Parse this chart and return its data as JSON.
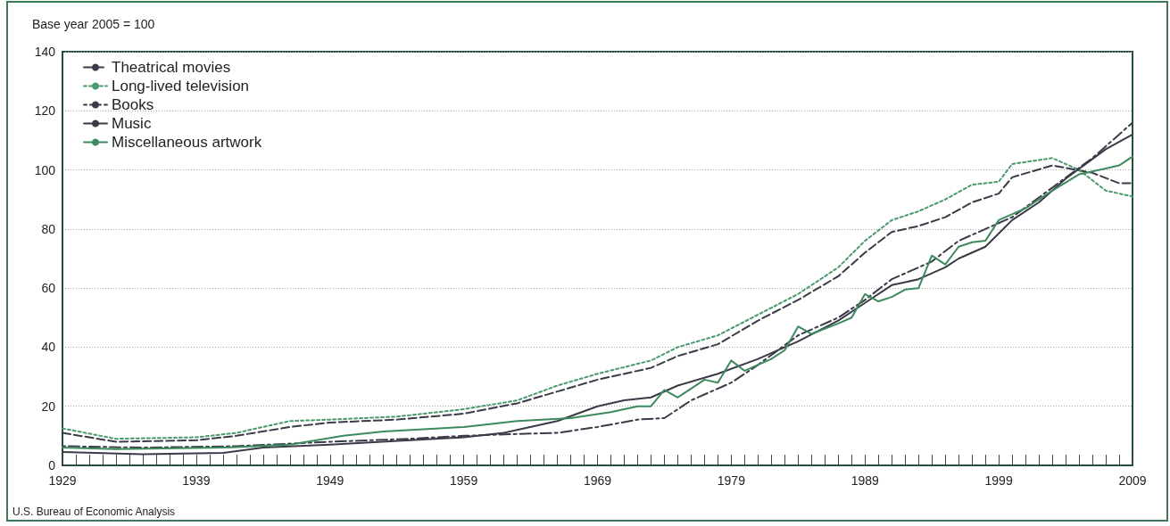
{
  "chart_data": {
    "type": "line",
    "ylabel": "Base year 2005 = 100",
    "annotations": [
      "U.S. Bureau of Economic Analysis"
    ],
    "xlim": [
      1929,
      2009
    ],
    "xticks": [
      1929,
      1939,
      1949,
      1959,
      1969,
      1979,
      1989,
      1999,
      2009
    ],
    "ylim": [
      0,
      140
    ],
    "yticks": [
      0,
      20,
      40,
      60,
      80,
      100,
      120,
      140
    ],
    "grid": "y",
    "legend": "top left",
    "series": [
      {
        "name": "Theatrical movies",
        "color": "#3a3a48",
        "line_style": "dashed",
        "x": [
          1929,
          1933,
          1939,
          1942,
          1946,
          1949,
          1954,
          1959,
          1963,
          1966,
          1969,
          1973,
          1975,
          1978,
          1981,
          1984,
          1987,
          1989,
          1991,
          1993,
          1995,
          1997,
          1999,
          2000,
          2003,
          2006,
          2008,
          2009
        ],
        "values": [
          11,
          8,
          8.5,
          10,
          13,
          14.5,
          15.5,
          17.5,
          21,
          25,
          29,
          33,
          37,
          41,
          49,
          56,
          64,
          72,
          79,
          81,
          84,
          89,
          92,
          97.5,
          101.5,
          99,
          95.5,
          95.5
        ]
      },
      {
        "name": "Long-lived television",
        "color": "#4a9a6e",
        "line_style": "dotted",
        "x": [
          1929,
          1933,
          1939,
          1942,
          1946,
          1949,
          1954,
          1959,
          1963,
          1966,
          1969,
          1973,
          1975,
          1978,
          1981,
          1984,
          1987,
          1989,
          1991,
          1993,
          1995,
          1997,
          1999,
          2000,
          2003,
          2005,
          2007,
          2009
        ],
        "values": [
          12.5,
          9,
          9.5,
          11,
          15,
          15.5,
          16.5,
          19,
          22,
          27,
          31,
          35.5,
          40,
          44,
          51,
          58,
          67,
          76,
          83,
          86,
          90,
          95,
          96,
          102,
          104,
          100,
          93,
          91
        ]
      },
      {
        "name": "Books",
        "color": "#3a3a48",
        "line_style": "dashdot",
        "x": [
          1929,
          1935,
          1942,
          1949,
          1955,
          1959,
          1962,
          1966,
          1969,
          1972,
          1974,
          1976,
          1979,
          1981,
          1984,
          1987,
          1989,
          1991,
          1994,
          1996,
          1998,
          2000,
          2003,
          2006,
          2009
        ],
        "values": [
          6.5,
          6,
          6.5,
          8,
          9,
          10,
          10.5,
          11,
          13,
          15.5,
          16,
          22,
          28,
          34,
          44,
          50,
          56,
          63,
          69,
          76,
          80,
          84,
          94,
          104,
          116
        ]
      },
      {
        "name": "Music",
        "color": "#3a3a48",
        "line_style": "solid",
        "x": [
          1929,
          1935,
          1941,
          1944,
          1949,
          1955,
          1959,
          1962,
          1966,
          1969,
          1971,
          1973,
          1975,
          1978,
          1981,
          1984,
          1987,
          1989,
          1991,
          1993,
          1995,
          1996,
          1998,
          2000,
          2002,
          2004,
          2007,
          2009
        ],
        "values": [
          4.5,
          3.8,
          4.2,
          6,
          7,
          8.5,
          9.5,
          11,
          15,
          20,
          22,
          23,
          27,
          31,
          36,
          42,
          49,
          55,
          61,
          63,
          67,
          70,
          74,
          83,
          89,
          97,
          107,
          112
        ]
      },
      {
        "name": "Miscellaneous artwork",
        "color": "#3d8a5e",
        "line_style": "solid",
        "x": [
          1929,
          1933,
          1941,
          1946,
          1950,
          1953,
          1959,
          1963,
          1967,
          1970,
          1972,
          1973,
          1974,
          1975,
          1976,
          1977,
          1978,
          1979,
          1980,
          1982,
          1983,
          1984,
          1985,
          1987,
          1988,
          1989,
          1990,
          1991,
          1992,
          1993,
          1994,
          1995,
          1996,
          1997,
          1998,
          1999,
          2001,
          2003,
          2005,
          2007,
          2008,
          2009
        ],
        "values": [
          6,
          5.5,
          6,
          7,
          10,
          11.5,
          13,
          15,
          16,
          18,
          20,
          20,
          25.5,
          23,
          26,
          29,
          28,
          35.5,
          32,
          36,
          39,
          47,
          44.5,
          48,
          50,
          58,
          55.5,
          57,
          59.5,
          60,
          71,
          68,
          74,
          75.5,
          76,
          83,
          87,
          93,
          98.5,
          100.5,
          101.5,
          104.5
        ]
      }
    ]
  }
}
